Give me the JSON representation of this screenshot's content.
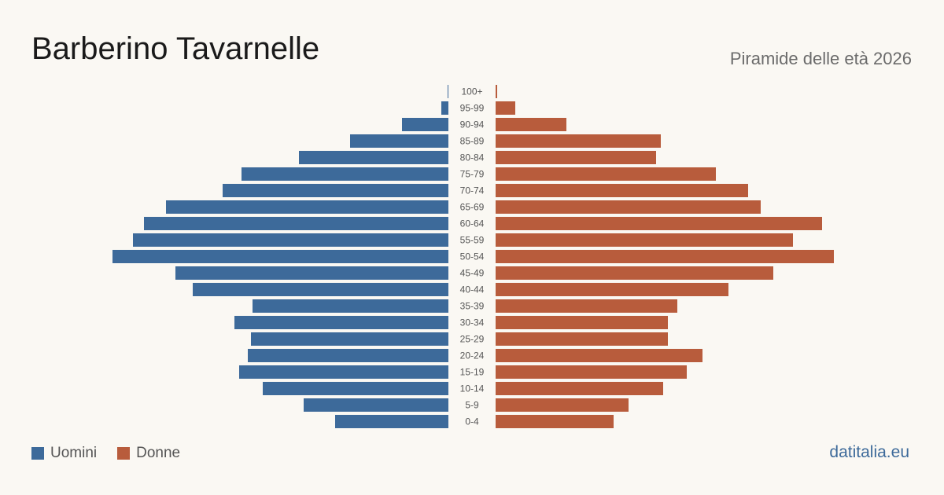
{
  "title": "Barberino Tavarnelle",
  "subtitle": "Piramide delle età 2026",
  "source": "datitalia.eu",
  "colors": {
    "men": "#3d6a9a",
    "women": "#b85c3c"
  },
  "chart_data": {
    "type": "bar",
    "orientation": "horizontal-pyramid",
    "categories": [
      "100+",
      "95-99",
      "90-94",
      "85-89",
      "80-84",
      "75-79",
      "70-74",
      "65-69",
      "60-64",
      "55-59",
      "50-54",
      "45-49",
      "40-44",
      "35-39",
      "30-34",
      "25-29",
      "20-24",
      "15-19",
      "10-14",
      "5-9",
      "0-4"
    ],
    "series": [
      {
        "name": "Uomini",
        "values": [
          1,
          9,
          59,
          125,
          190,
          263,
          287,
          359,
          387,
          401,
          427,
          347,
          325,
          249,
          272,
          251,
          255,
          266,
          236,
          184,
          144
        ]
      },
      {
        "name": "Donne",
        "values": [
          2,
          25,
          90,
          210,
          204,
          280,
          321,
          337,
          415,
          378,
          430,
          353,
          296,
          231,
          219,
          219,
          263,
          243,
          213,
          169,
          150
        ]
      }
    ],
    "legend": "bottom-left",
    "grid": false
  }
}
